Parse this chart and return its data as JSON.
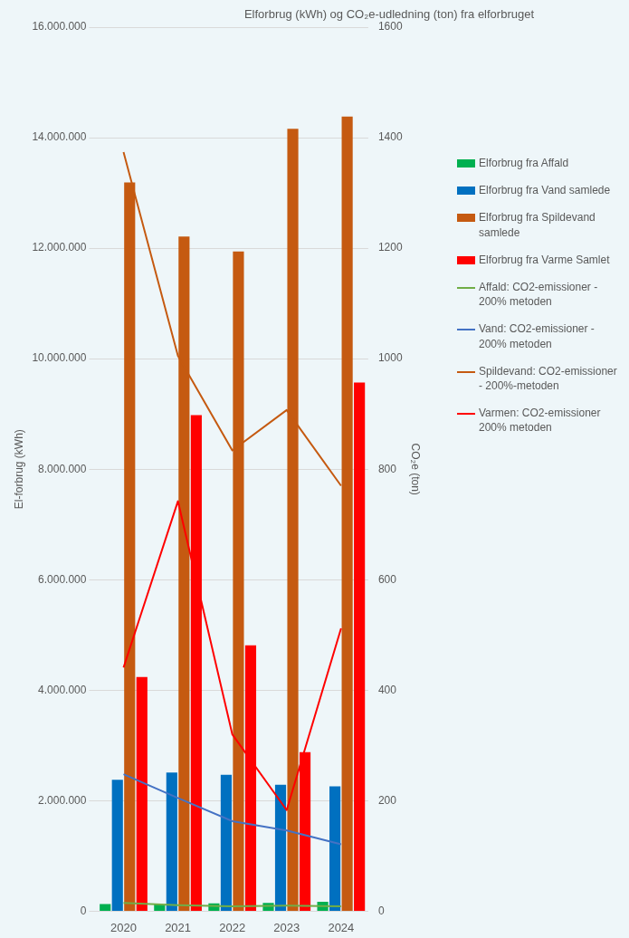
{
  "chart_data": {
    "type": "bar",
    "title": "Elforbrug (kWh) og CO₂e-udledning (ton) fra elforbruget",
    "ylabel": "El-forbrug (kWh)",
    "y2label": "CO₂e (ton)",
    "categories": [
      "2020",
      "2021",
      "2022",
      "2023",
      "2024"
    ],
    "ylim": [
      0,
      16000000
    ],
    "yticks": [
      {
        "value": 0,
        "label": "0"
      },
      {
        "value": 2000000,
        "label": "2.000.000"
      },
      {
        "value": 4000000,
        "label": "4.000.000"
      },
      {
        "value": 6000000,
        "label": "6.000.000"
      },
      {
        "value": 8000000,
        "label": "8.000.000"
      },
      {
        "value": 10000000,
        "label": "10.000.000"
      },
      {
        "value": 12000000,
        "label": "12.000.000"
      },
      {
        "value": 14000000,
        "label": "14.000.000"
      },
      {
        "value": 16000000,
        "label": "16.000.000"
      }
    ],
    "y2lim": [
      0,
      1600
    ],
    "y2ticks": [
      0,
      200,
      400,
      600,
      800,
      1000,
      1200,
      1400,
      1600
    ],
    "grid": "y",
    "legend": "right",
    "marker": "none",
    "series": [
      {
        "name": "Elforbrug fra Affald",
        "color": "#00b050",
        "values": [
          130000,
          120000,
          140000,
          150000,
          170000
        ]
      },
      {
        "name": "Elforbrug fra Vand samlede",
        "color": "#0070c0",
        "values": [
          2380000,
          2510000,
          2470000,
          2290000,
          2260000
        ]
      },
      {
        "name": "Elforbrug fra Spildevand samlede",
        "color": "#c55a11",
        "values": [
          13190000,
          12210000,
          11940000,
          14160000,
          14380000
        ]
      },
      {
        "name": "Elforbrug fra Varme Samlet",
        "color": "#ff0000",
        "values": [
          4240000,
          8980000,
          4810000,
          2880000,
          9570000
        ]
      },
      {
        "name": "Affald: CO2-emissioner - 200% metoden",
        "type": "line",
        "axis": "y2",
        "color": "#70ad47",
        "values": [
          15,
          11,
          9,
          10,
          9
        ]
      },
      {
        "name": "Vand: CO2-emissioner - 200% metoden",
        "type": "line",
        "axis": "y2",
        "color": "#4472c4",
        "values": [
          248,
          205,
          163,
          146,
          121
        ]
      },
      {
        "name": "Spildevand: CO2-emissioner - 200%-metoden",
        "type": "line",
        "axis": "y2",
        "color": "#c55a11",
        "values": [
          1374,
          1005,
          834,
          907,
          770
        ]
      },
      {
        "name": "Varmen: CO2-emissioner 200% metoden",
        "type": "line",
        "axis": "y2",
        "color": "#ff0000",
        "values": [
          441,
          742,
          320,
          183,
          512
        ]
      }
    ]
  }
}
